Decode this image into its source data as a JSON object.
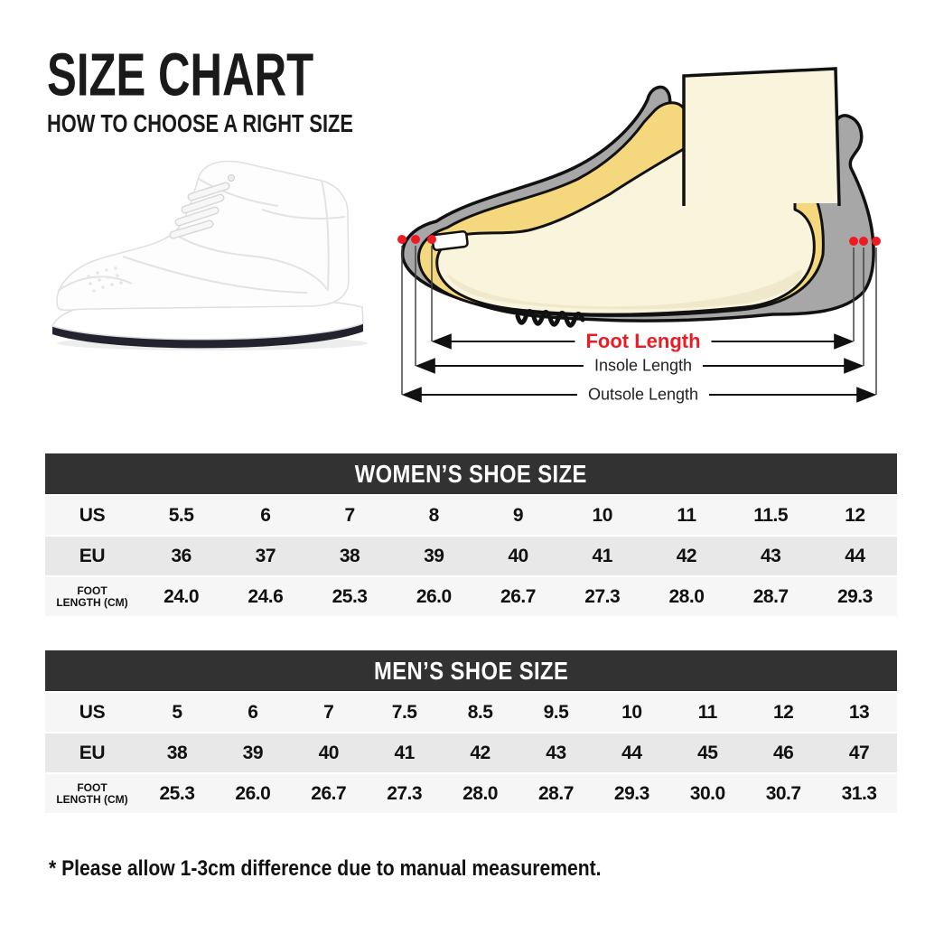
{
  "page": {
    "title": "SIZE CHART",
    "subtitle": "HOW TO CHOOSE A RIGHT SIZE",
    "note": "* Please allow 1-3cm difference due to manual measurement."
  },
  "diagram": {
    "foot_label": "Foot Length",
    "insole_label": "Insole Length",
    "outsole_label": "Outsole Length",
    "colors": {
      "shoe_gray": "#a7a7a7",
      "liner_yellow": "#f5d77e",
      "foot_cream": "#f9f5dd",
      "foot_shade": "#ece5c6",
      "outline": "#111111",
      "accent_red": "#ee1b22"
    }
  },
  "sneaker": {
    "description": "white high-top sneaker, side view, dark outsole",
    "colors": {
      "upper": "#fdfdfd",
      "panel_line": "#e0e0e0",
      "outsole": "#232330"
    }
  },
  "tables": [
    {
      "title": "WOMEN’S SHOE SIZE",
      "rows": [
        {
          "label_lines": [
            "US"
          ],
          "values": [
            "5.5",
            "6",
            "7",
            "8",
            "9",
            "10",
            "11",
            "11.5",
            "12"
          ]
        },
        {
          "label_lines": [
            "EU"
          ],
          "values": [
            "36",
            "37",
            "38",
            "39",
            "40",
            "41",
            "42",
            "43",
            "44"
          ]
        },
        {
          "label_lines": [
            "FOOT",
            "LENGTH (CM)"
          ],
          "values": [
            "24.0",
            "24.6",
            "25.3",
            "26.0",
            "26.7",
            "27.3",
            "28.0",
            "28.7",
            "29.3"
          ]
        }
      ]
    },
    {
      "title": "MEN’S SHOE SIZE",
      "rows": [
        {
          "label_lines": [
            "US"
          ],
          "values": [
            "5",
            "6",
            "7",
            "7.5",
            "8.5",
            "9.5",
            "10",
            "11",
            "12",
            "13"
          ]
        },
        {
          "label_lines": [
            "EU"
          ],
          "values": [
            "38",
            "39",
            "40",
            "41",
            "42",
            "43",
            "44",
            "45",
            "46",
            "47"
          ]
        },
        {
          "label_lines": [
            "FOOT",
            "LENGTH (CM)"
          ],
          "values": [
            "25.3",
            "26.0",
            "26.7",
            "27.3",
            "28.0",
            "28.7",
            "29.3",
            "30.0",
            "30.7",
            "31.3"
          ]
        }
      ]
    }
  ],
  "colors": {
    "header_bar": "#323232",
    "row_light": "#f6f6f6",
    "row_dark": "#e8e8e8",
    "text": "#111111"
  }
}
